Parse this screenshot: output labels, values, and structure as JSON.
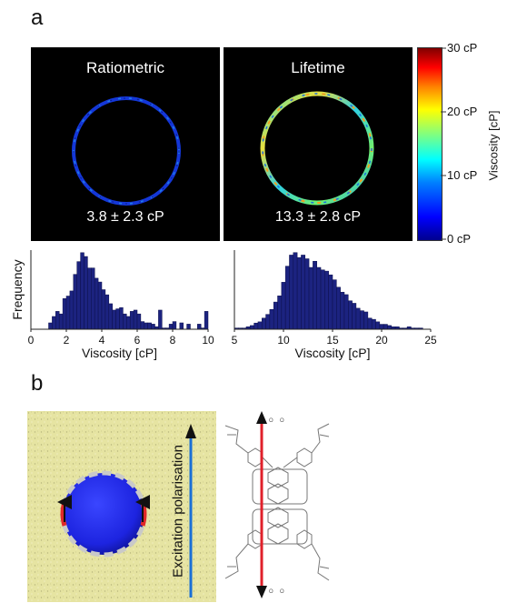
{
  "panel_a": {
    "letter": "a",
    "images": [
      {
        "title": "Ratiometric",
        "value": "3.8 ± 2.3 cP"
      },
      {
        "title": "Lifetime",
        "value": "13.3 ± 2.8 cP"
      }
    ],
    "colorbar": {
      "label": "Viscosity [cP]",
      "ticks": [
        "30 cP",
        "20 cP",
        "10 cP",
        "0 cP"
      ],
      "range": [
        0,
        30
      ],
      "colormap": "jet"
    }
  },
  "panel_b": {
    "letter": "b",
    "label": "Excitation  polarisation",
    "colors": {
      "background": "#e7e6a7",
      "sphere": "#2a2ef0",
      "arrow": "#1a6fd6",
      "molecule_axis": "#e0202a"
    }
  },
  "chart_data": [
    {
      "type": "bar",
      "ylabel": "Frequency",
      "xlabel": "Viscosity [cP]",
      "xlim": [
        0,
        10
      ],
      "xticks": [
        0,
        2,
        4,
        6,
        8,
        10
      ],
      "bin_width": 0.2,
      "x": [
        1.1,
        1.3,
        1.5,
        1.7,
        1.9,
        2.1,
        2.3,
        2.5,
        2.7,
        2.9,
        3.1,
        3.3,
        3.5,
        3.7,
        3.9,
        4.1,
        4.3,
        4.5,
        4.7,
        4.9,
        5.1,
        5.3,
        5.5,
        5.7,
        5.9,
        6.1,
        6.3,
        6.5,
        6.7,
        6.9,
        7.1,
        7.3,
        7.5,
        7.7,
        7.9,
        8.1,
        8.3,
        8.5,
        8.7,
        8.9,
        9.1,
        9.3,
        9.5,
        9.7,
        9.9
      ],
      "values": [
        5,
        10,
        14,
        12,
        24,
        26,
        30,
        43,
        53,
        60,
        57,
        48,
        48,
        40,
        37,
        31,
        27,
        20,
        15,
        16,
        17,
        12,
        10,
        14,
        15,
        12,
        6,
        5,
        5,
        4,
        2,
        15,
        1,
        1,
        4,
        6,
        0,
        5,
        0,
        4,
        0,
        0,
        4,
        1,
        14
      ]
    },
    {
      "type": "bar",
      "xlabel": "Viscosity [cP]",
      "xlim": [
        5,
        25
      ],
      "xticks": [
        5,
        10,
        15,
        20,
        25
      ],
      "bin_width": 0.4,
      "x": [
        5.2,
        5.6,
        6.0,
        6.4,
        6.8,
        7.2,
        7.6,
        8.0,
        8.4,
        8.8,
        9.2,
        9.6,
        10.0,
        10.4,
        10.8,
        11.2,
        11.6,
        12.0,
        12.4,
        12.8,
        13.2,
        13.6,
        14.0,
        14.4,
        14.8,
        15.2,
        15.6,
        16.0,
        16.4,
        16.8,
        17.2,
        17.6,
        18.0,
        18.4,
        18.8,
        19.2,
        19.6,
        20.0,
        20.4,
        20.8,
        21.2,
        21.6,
        22.0,
        22.4,
        22.8,
        23.2,
        23.6,
        24.0,
        24.4,
        24.8
      ],
      "values": [
        1,
        1,
        1,
        2,
        3,
        5,
        6,
        9,
        12,
        16,
        22,
        27,
        38,
        51,
        60,
        62,
        58,
        60,
        57,
        50,
        55,
        50,
        48,
        47,
        44,
        40,
        34,
        30,
        28,
        23,
        21,
        17,
        15,
        14,
        9,
        8,
        6,
        4,
        4,
        3,
        2,
        2,
        1,
        1,
        2,
        1,
        1,
        1,
        0,
        0
      ]
    }
  ]
}
